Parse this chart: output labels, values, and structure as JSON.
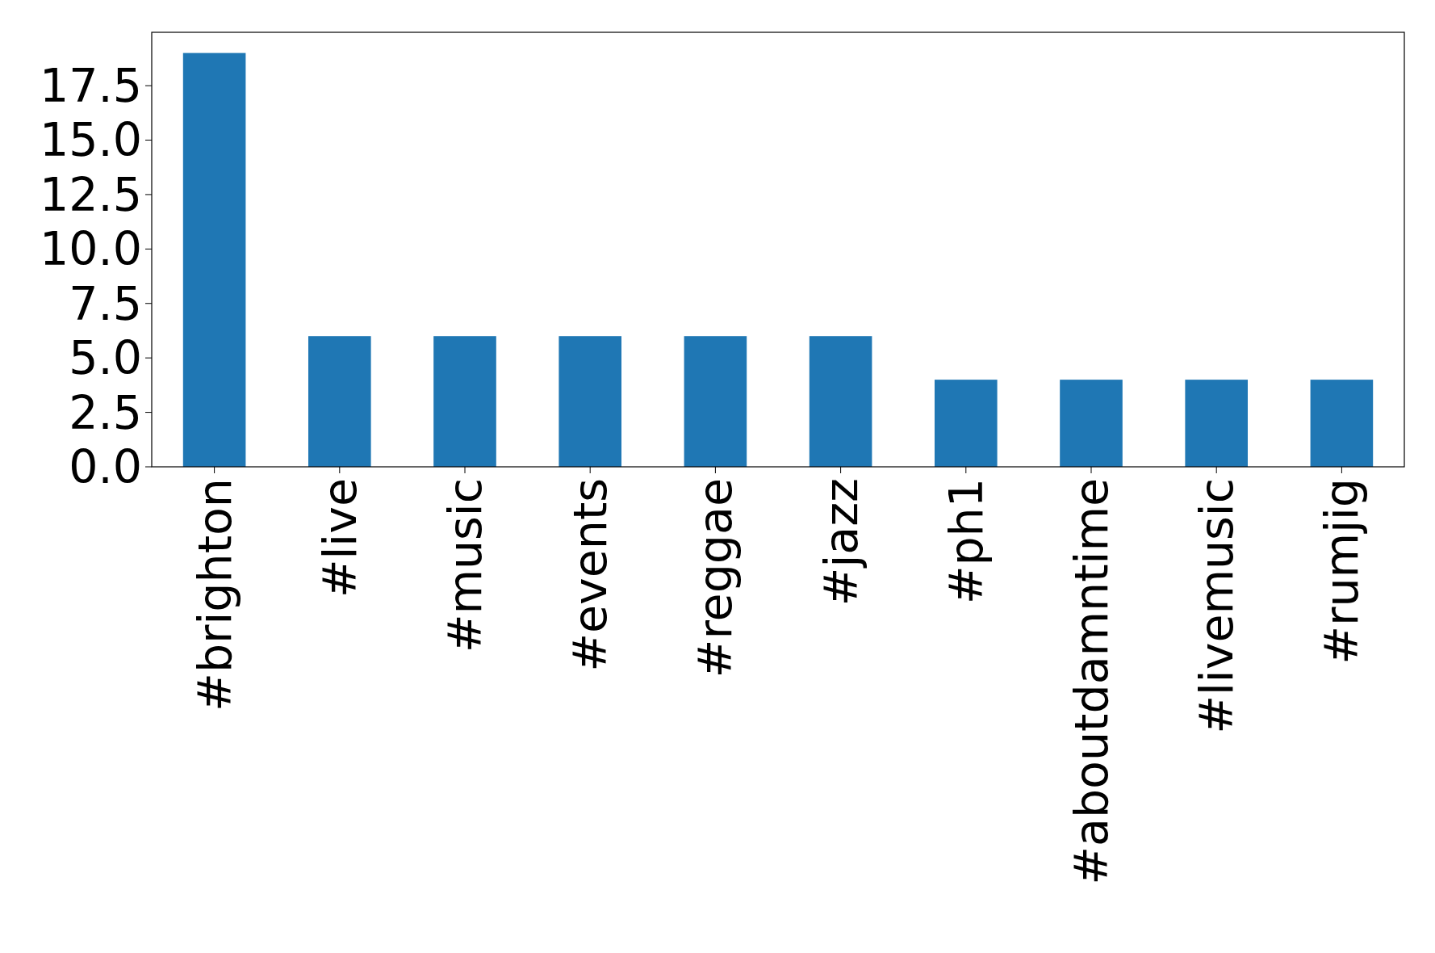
{
  "chart_data": {
    "type": "bar",
    "categories": [
      "#brighton",
      "#live",
      "#music",
      "#events",
      "#reggae",
      "#jazz",
      "#ph1",
      "#aboutdamntime",
      "#livemusic",
      "#rumjig"
    ],
    "values": [
      19,
      6,
      6,
      6,
      6,
      6,
      4,
      4,
      4,
      4
    ],
    "color": "#1f77b4",
    "ylim": [
      0,
      19.95
    ],
    "yticks": [
      {
        "value": 0,
        "label": "0.0"
      },
      {
        "value": 2.5,
        "label": "2.5"
      },
      {
        "value": 5,
        "label": "5.0"
      },
      {
        "value": 7.5,
        "label": "7.5"
      },
      {
        "value": 10,
        "label": "10.0"
      },
      {
        "value": 12.5,
        "label": "12.5"
      },
      {
        "value": 15,
        "label": "15.0"
      },
      {
        "value": 17.5,
        "label": "17.5"
      }
    ]
  }
}
